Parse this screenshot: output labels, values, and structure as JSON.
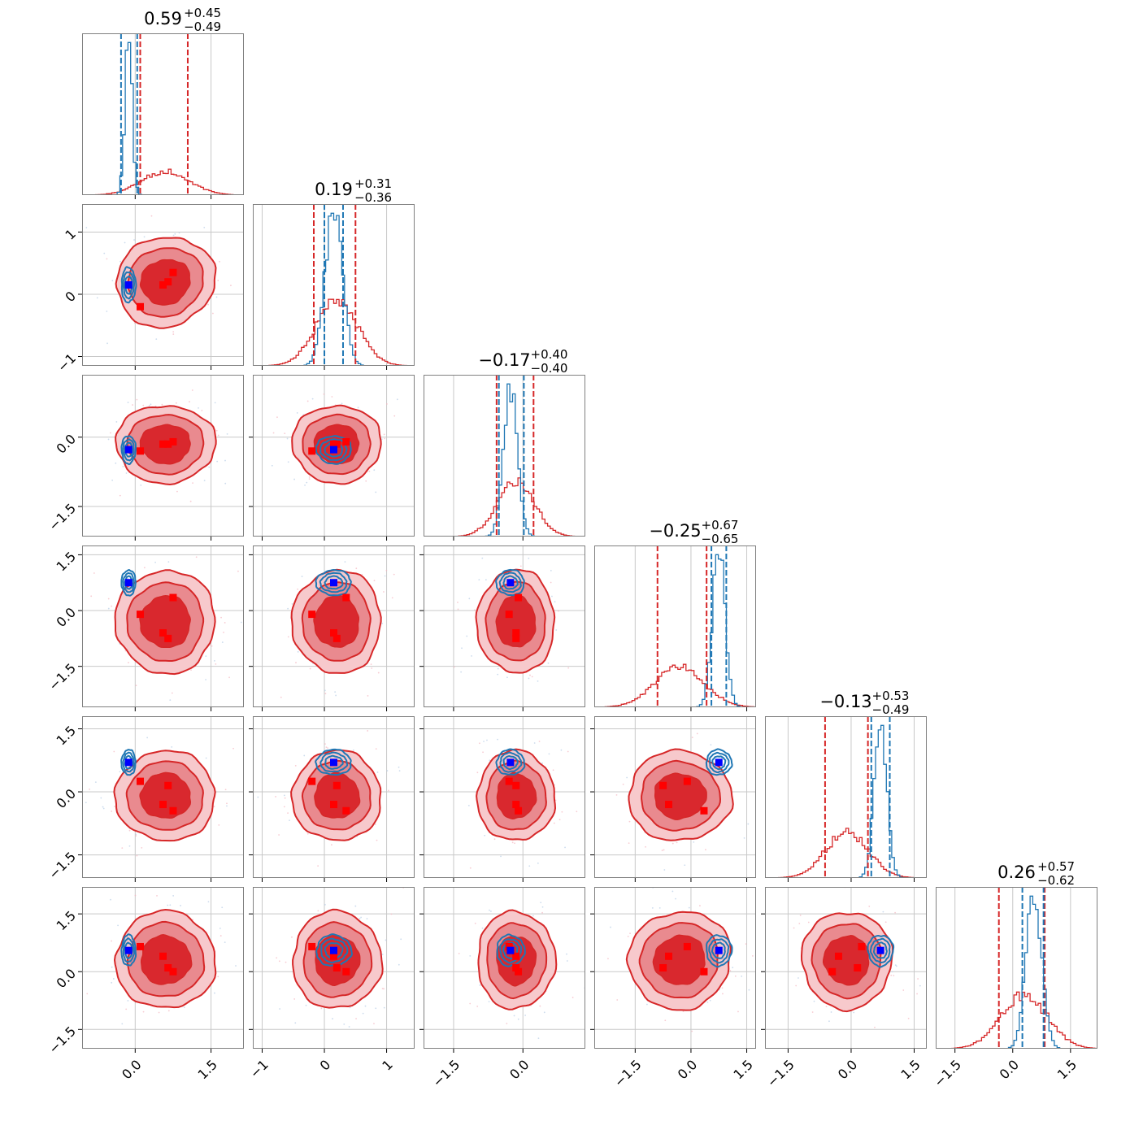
{
  "chart_data": {
    "type": "corner",
    "description_ticks": {
      "col0": [
        "0.0",
        "1.5"
      ],
      "col1": [
        "−1",
        "0",
        "1"
      ],
      "col2": [
        "−1.5",
        "0.0"
      ],
      "col3": [
        "−1.5",
        "0.0",
        "1.5"
      ],
      "col4": [
        "−1.5",
        "0.0",
        "1.5"
      ],
      "col5": [
        "−1.5",
        "0.0",
        "1.5"
      ],
      "row1": [
        "−1",
        "0",
        "1"
      ],
      "row2": [
        "−1.5",
        "0.0"
      ],
      "row3": [
        "−1.5",
        "0.0",
        "1.5"
      ],
      "row4": [
        "−1.5",
        "0.0",
        "1.5"
      ],
      "row5": [
        "−1.5",
        "0.0",
        "1.5"
      ]
    },
    "tick_values": {
      "col0": [
        0.0,
        1.5
      ],
      "col1": [
        -1,
        0,
        1
      ],
      "col2": [
        -1.5,
        0.0
      ],
      "col3": [
        -1.5,
        0.0,
        1.5
      ],
      "col4": [
        -1.5,
        0.0,
        1.5
      ],
      "col5": [
        -1.5,
        0.0,
        1.5
      ],
      "row1": [
        -1,
        0,
        1
      ],
      "row2": [
        -1.5,
        0.0
      ],
      "row3": [
        -1.5,
        0.0,
        1.5
      ],
      "row4": [
        -1.5,
        0.0,
        1.5
      ],
      "row5": [
        -1.5,
        0.0,
        1.5
      ]
    },
    "ranges": [
      [
        -1.05,
        2.15
      ],
      [
        -1.15,
        1.45
      ],
      [
        -2.15,
        1.35
      ],
      [
        -2.6,
        1.75
      ],
      [
        -2.05,
        1.8
      ],
      [
        -2.0,
        2.2
      ]
    ],
    "titles": [
      {
        "main": "0.59",
        "plus": "+0.45",
        "minus": "−0.49"
      },
      {
        "main": "0.19",
        "plus": "+0.31",
        "minus": "−0.36"
      },
      {
        "main": "−0.17",
        "plus": "+0.40",
        "minus": "−0.40"
      },
      {
        "main": "−0.25",
        "plus": "+0.67",
        "minus": "−0.65"
      },
      {
        "main": "−0.13",
        "plus": "+0.53",
        "minus": "−0.49"
      },
      {
        "main": "0.26",
        "plus": "+0.57",
        "minus": "−0.62"
      }
    ],
    "series": [
      {
        "name": "red",
        "color": "#d62728",
        "means": [
          0.6,
          0.2,
          -0.15,
          -0.3,
          -0.1,
          0.3
        ],
        "sds": [
          0.47,
          0.34,
          0.4,
          0.66,
          0.51,
          0.6
        ],
        "quantiles": [
          [
            0.1,
            1.04
          ],
          [
            -0.17,
            0.5
          ],
          [
            -0.57,
            0.23
          ],
          [
            -0.9,
            0.42
          ],
          [
            -0.62,
            0.4
          ],
          [
            -0.36,
            0.83
          ]
        ]
      },
      {
        "name": "blue",
        "color": "#1f77b4",
        "means": [
          -0.13,
          0.15,
          -0.27,
          0.75,
          0.7,
          0.55
        ],
        "sds": [
          0.07,
          0.14,
          0.15,
          0.17,
          0.15,
          0.2
        ],
        "quantiles": [
          [
            -0.28,
            0.04
          ],
          [
            0.0,
            0.3
          ],
          [
            -0.52,
            0.02
          ],
          [
            0.55,
            0.95
          ],
          [
            0.48,
            0.92
          ],
          [
            0.25,
            0.8
          ]
        ]
      }
    ],
    "truth_point_blue": [
      -0.13,
      0.15,
      -0.27,
      0.75,
      0.7,
      0.55
    ],
    "red_points": [
      [
        0.75,
        0.35,
        -0.1,
        0.35,
        -0.45,
        0.0
      ],
      [
        0.55,
        0.15,
        -0.15,
        -0.6,
        -0.3,
        0.4
      ],
      [
        0.1,
        -0.2,
        -0.3,
        -0.1,
        0.25,
        0.65
      ],
      [
        0.65,
        0.2,
        -0.15,
        -0.75,
        0.15,
        0.1
      ]
    ]
  }
}
